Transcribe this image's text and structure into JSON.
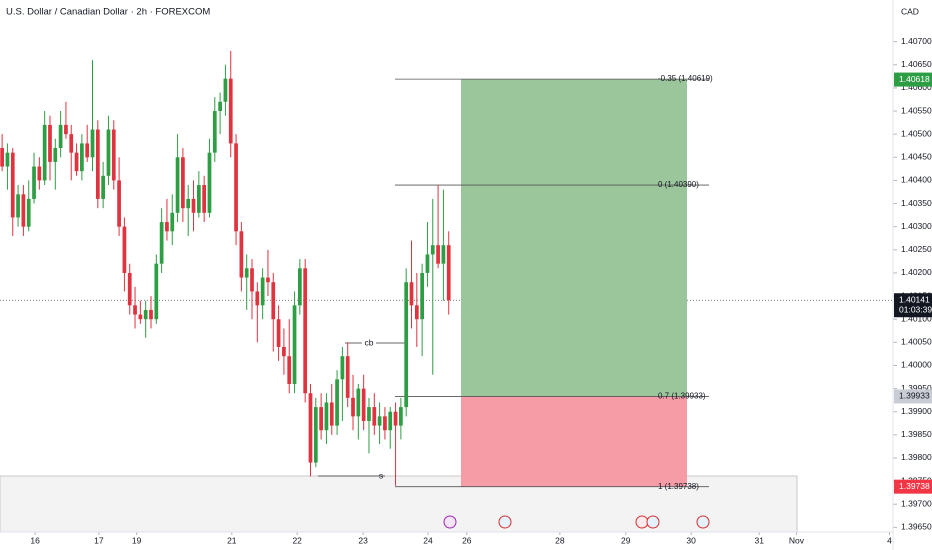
{
  "chart_data": {
    "type": "candlestick",
    "title": "U.S. Dollar / Canadian Dollar · 2h · FOREXCOM",
    "currency": "CAD",
    "up_color": "#2e9e44",
    "down_color": "#e0323f",
    "x": [
      0,
      1,
      2,
      3,
      4,
      5,
      6,
      7,
      8,
      9,
      10,
      11,
      12,
      13,
      14,
      15,
      16,
      17,
      18,
      19,
      20,
      21,
      22,
      23,
      24,
      25,
      26,
      27,
      28,
      29,
      30,
      31,
      32,
      33,
      34,
      35,
      36,
      37,
      38,
      39,
      40,
      41,
      42,
      43,
      44,
      45,
      46,
      47,
      48,
      49,
      50,
      51,
      52,
      53,
      54,
      55,
      56,
      57,
      58,
      59,
      60,
      61,
      62,
      63,
      64,
      65,
      66,
      67,
      68,
      69,
      70,
      71,
      72,
      73,
      74,
      75,
      76,
      77,
      78,
      79,
      80,
      81,
      82,
      83,
      84
    ],
    "open": [
      1.4047,
      1.4043,
      1.4046,
      1.4032,
      1.4037,
      1.403,
      1.4036,
      1.4043,
      1.404,
      1.4052,
      1.4044,
      1.4047,
      1.4052,
      1.405,
      1.4046,
      1.4042,
      1.4048,
      1.4045,
      1.4051,
      1.4036,
      1.4041,
      1.4051,
      1.404,
      1.403,
      1.402,
      1.4013,
      1.4011,
      1.401,
      1.4012,
      1.401,
      1.4022,
      1.4031,
      1.4029,
      1.4033,
      1.4045,
      1.4034,
      1.4036,
      1.4033,
      1.4039,
      1.4033,
      1.4046,
      1.4055,
      1.4057,
      1.4062,
      1.4048,
      1.4029,
      1.4019,
      1.4021,
      1.4016,
      1.4013,
      1.4019,
      1.4018,
      1.401,
      1.4004,
      1.4002,
      1.3996,
      1.4013,
      1.4021,
      1.3994,
      1.3979,
      1.3991,
      1.3986,
      1.3992,
      1.3987,
      1.3997,
      1.4002,
      1.3993,
      1.3989,
      1.3995,
      1.3988,
      1.3991,
      1.3987,
      1.3989,
      1.3986,
      1.399,
      1.3987,
      1.3991,
      1.4018,
      1.4013,
      1.401,
      1.402,
      1.4024,
      1.4026,
      1.4022,
      1.4026
    ],
    "high": [
      1.405,
      1.4048,
      1.4047,
      1.4039,
      1.4039,
      1.404,
      1.4046,
      1.4045,
      1.4055,
      1.4054,
      1.4049,
      1.4055,
      1.4057,
      1.4052,
      1.4048,
      1.405,
      1.4052,
      1.4066,
      1.4053,
      1.4044,
      1.4054,
      1.4053,
      1.4045,
      1.4032,
      1.4022,
      1.4017,
      1.4014,
      1.4014,
      1.4015,
      1.4024,
      1.4034,
      1.4036,
      1.4037,
      1.405,
      1.4047,
      1.4039,
      1.404,
      1.4042,
      1.4041,
      1.4049,
      1.4058,
      1.4059,
      1.4065,
      1.4068,
      1.405,
      1.4031,
      1.4024,
      1.4023,
      1.4018,
      1.4021,
      1.4025,
      1.402,
      1.4013,
      1.4008,
      1.401,
      1.4016,
      1.4023,
      1.4023,
      1.3996,
      1.3993,
      1.3994,
      1.3994,
      1.3996,
      1.3999,
      1.4004,
      1.4005,
      1.3998,
      1.3996,
      1.3998,
      1.3993,
      1.3994,
      1.3992,
      1.3991,
      1.3991,
      1.3992,
      1.3993,
      1.4021,
      1.4027,
      1.402,
      1.4022,
      1.4031,
      1.4036,
      1.4039,
      1.4038,
      1.4029
    ],
    "low": [
      1.4042,
      1.4038,
      1.4028,
      1.403,
      1.4028,
      1.4029,
      1.4035,
      1.4038,
      1.4039,
      1.404,
      1.4038,
      1.4045,
      1.4049,
      1.404,
      1.4041,
      1.404,
      1.4044,
      1.4042,
      1.4034,
      1.4034,
      1.4039,
      1.4038,
      1.4028,
      1.4016,
      1.4011,
      1.4008,
      1.4009,
      1.4006,
      1.4008,
      1.4009,
      1.402,
      1.4027,
      1.4026,
      1.4031,
      1.4031,
      1.4028,
      1.4029,
      1.4032,
      1.4031,
      1.4032,
      1.4044,
      1.405,
      1.4054,
      1.4045,
      1.4026,
      1.4016,
      1.4012,
      1.401,
      1.4005,
      1.401,
      1.4015,
      1.4003,
      1.4001,
      1.3998,
      1.3994,
      1.3994,
      1.4011,
      1.3992,
      1.3976,
      1.3978,
      1.3984,
      1.3983,
      1.3985,
      1.3985,
      1.3988,
      1.3991,
      1.3986,
      1.3984,
      1.3986,
      1.3981,
      1.3985,
      1.3983,
      1.3984,
      1.3982,
      1.3974,
      1.3984,
      1.3989,
      1.4008,
      1.4004,
      1.4002,
      1.4017,
      1.3998,
      1.4021,
      1.4014,
      1.4011
    ],
    "close": [
      1.4043,
      1.4046,
      1.4032,
      1.4037,
      1.403,
      1.4036,
      1.4043,
      1.404,
      1.4052,
      1.4044,
      1.4047,
      1.4052,
      1.405,
      1.4046,
      1.4042,
      1.4048,
      1.4045,
      1.4051,
      1.4036,
      1.4041,
      1.4051,
      1.404,
      1.403,
      1.402,
      1.4013,
      1.4011,
      1.401,
      1.4012,
      1.401,
      1.4022,
      1.4031,
      1.4029,
      1.4033,
      1.4045,
      1.4034,
      1.4036,
      1.4033,
      1.4039,
      1.4033,
      1.4046,
      1.4055,
      1.4057,
      1.4062,
      1.4048,
      1.4029,
      1.4019,
      1.4021,
      1.4016,
      1.4013,
      1.4019,
      1.4018,
      1.401,
      1.4004,
      1.4002,
      1.3996,
      1.4013,
      1.4021,
      1.3994,
      1.3979,
      1.3991,
      1.3986,
      1.3992,
      1.3987,
      1.3997,
      1.4002,
      1.3993,
      1.3989,
      1.3995,
      1.3988,
      1.3991,
      1.3987,
      1.3989,
      1.3986,
      1.399,
      1.3987,
      1.3991,
      1.4018,
      1.4013,
      1.401,
      1.402,
      1.4024,
      1.4026,
      1.4022,
      1.4026,
      1.40141
    ],
    "xlim": [
      -0.4,
      167
    ],
    "xticks": [
      {
        "value": 6.2,
        "label": "16"
      },
      {
        "value": 18.2,
        "label": "17"
      },
      {
        "value": 25.3,
        "label": "19"
      },
      {
        "value": 43.2,
        "label": "21"
      },
      {
        "value": 55.5,
        "label": "22"
      },
      {
        "value": 67.9,
        "label": "23"
      },
      {
        "value": 80.1,
        "label": "24"
      },
      {
        "value": 87.4,
        "label": "26"
      },
      {
        "value": 104.9,
        "label": "28"
      },
      {
        "value": 117.3,
        "label": "29"
      },
      {
        "value": 129.6,
        "label": "30"
      },
      {
        "value": 142.4,
        "label": "31"
      },
      {
        "value": 149.4,
        "label": "Nov"
      },
      {
        "value": 166.9,
        "label": "4"
      }
    ],
    "ylim": [
      1.3964,
      1.4079
    ],
    "yticks": [
      {
        "value": 1.3965,
        "label": "1.39650"
      },
      {
        "value": 1.397,
        "label": "1.39700"
      },
      {
        "value": 1.3975,
        "label": "1.39750"
      },
      {
        "value": 1.398,
        "label": "1.39800"
      },
      {
        "value": 1.3985,
        "label": "1.39850"
      },
      {
        "value": 1.399,
        "label": "1.39900"
      },
      {
        "value": 1.3995,
        "label": "1.39950"
      },
      {
        "value": 1.4,
        "label": "1.40000"
      },
      {
        "value": 1.4005,
        "label": "1.40050"
      },
      {
        "value": 1.401,
        "label": "1.40100"
      },
      {
        "value": 1.4015,
        "label": "1.40150"
      },
      {
        "value": 1.402,
        "label": "1.40200"
      },
      {
        "value": 1.4025,
        "label": "1.40250"
      },
      {
        "value": 1.403,
        "label": "1.40300"
      },
      {
        "value": 1.4035,
        "label": "1.40350"
      },
      {
        "value": 1.404,
        "label": "1.40400"
      },
      {
        "value": 1.4045,
        "label": "1.40450"
      },
      {
        "value": 1.405,
        "label": "1.40500"
      },
      {
        "value": 1.4055,
        "label": "1.40550"
      },
      {
        "value": 1.406,
        "label": "1.40600"
      },
      {
        "value": 1.4065,
        "label": "1.40650"
      },
      {
        "value": 1.407,
        "label": "1.40700"
      }
    ],
    "fib_levels": [
      {
        "label": "-0.35 (1.40619)",
        "value": 1.40619
      },
      {
        "label": "0 (1.40390)",
        "value": 1.4039
      },
      {
        "label": "0.7 (1.39933)",
        "value": 1.39933
      },
      {
        "label": "1 (1.39738)",
        "value": 1.39738
      }
    ],
    "price_badges": [
      {
        "value": 1.40618,
        "color": "#2e9e44"
      },
      {
        "value": 1.40141,
        "color": "#131722",
        "countdown": "01:03:39"
      },
      {
        "value": 1.39933,
        "color": "#c9ccd4"
      },
      {
        "value": 1.39738,
        "color": "#f23645"
      }
    ],
    "annotations": [
      {
        "text": "cb"
      },
      {
        "text": "s"
      }
    ]
  }
}
